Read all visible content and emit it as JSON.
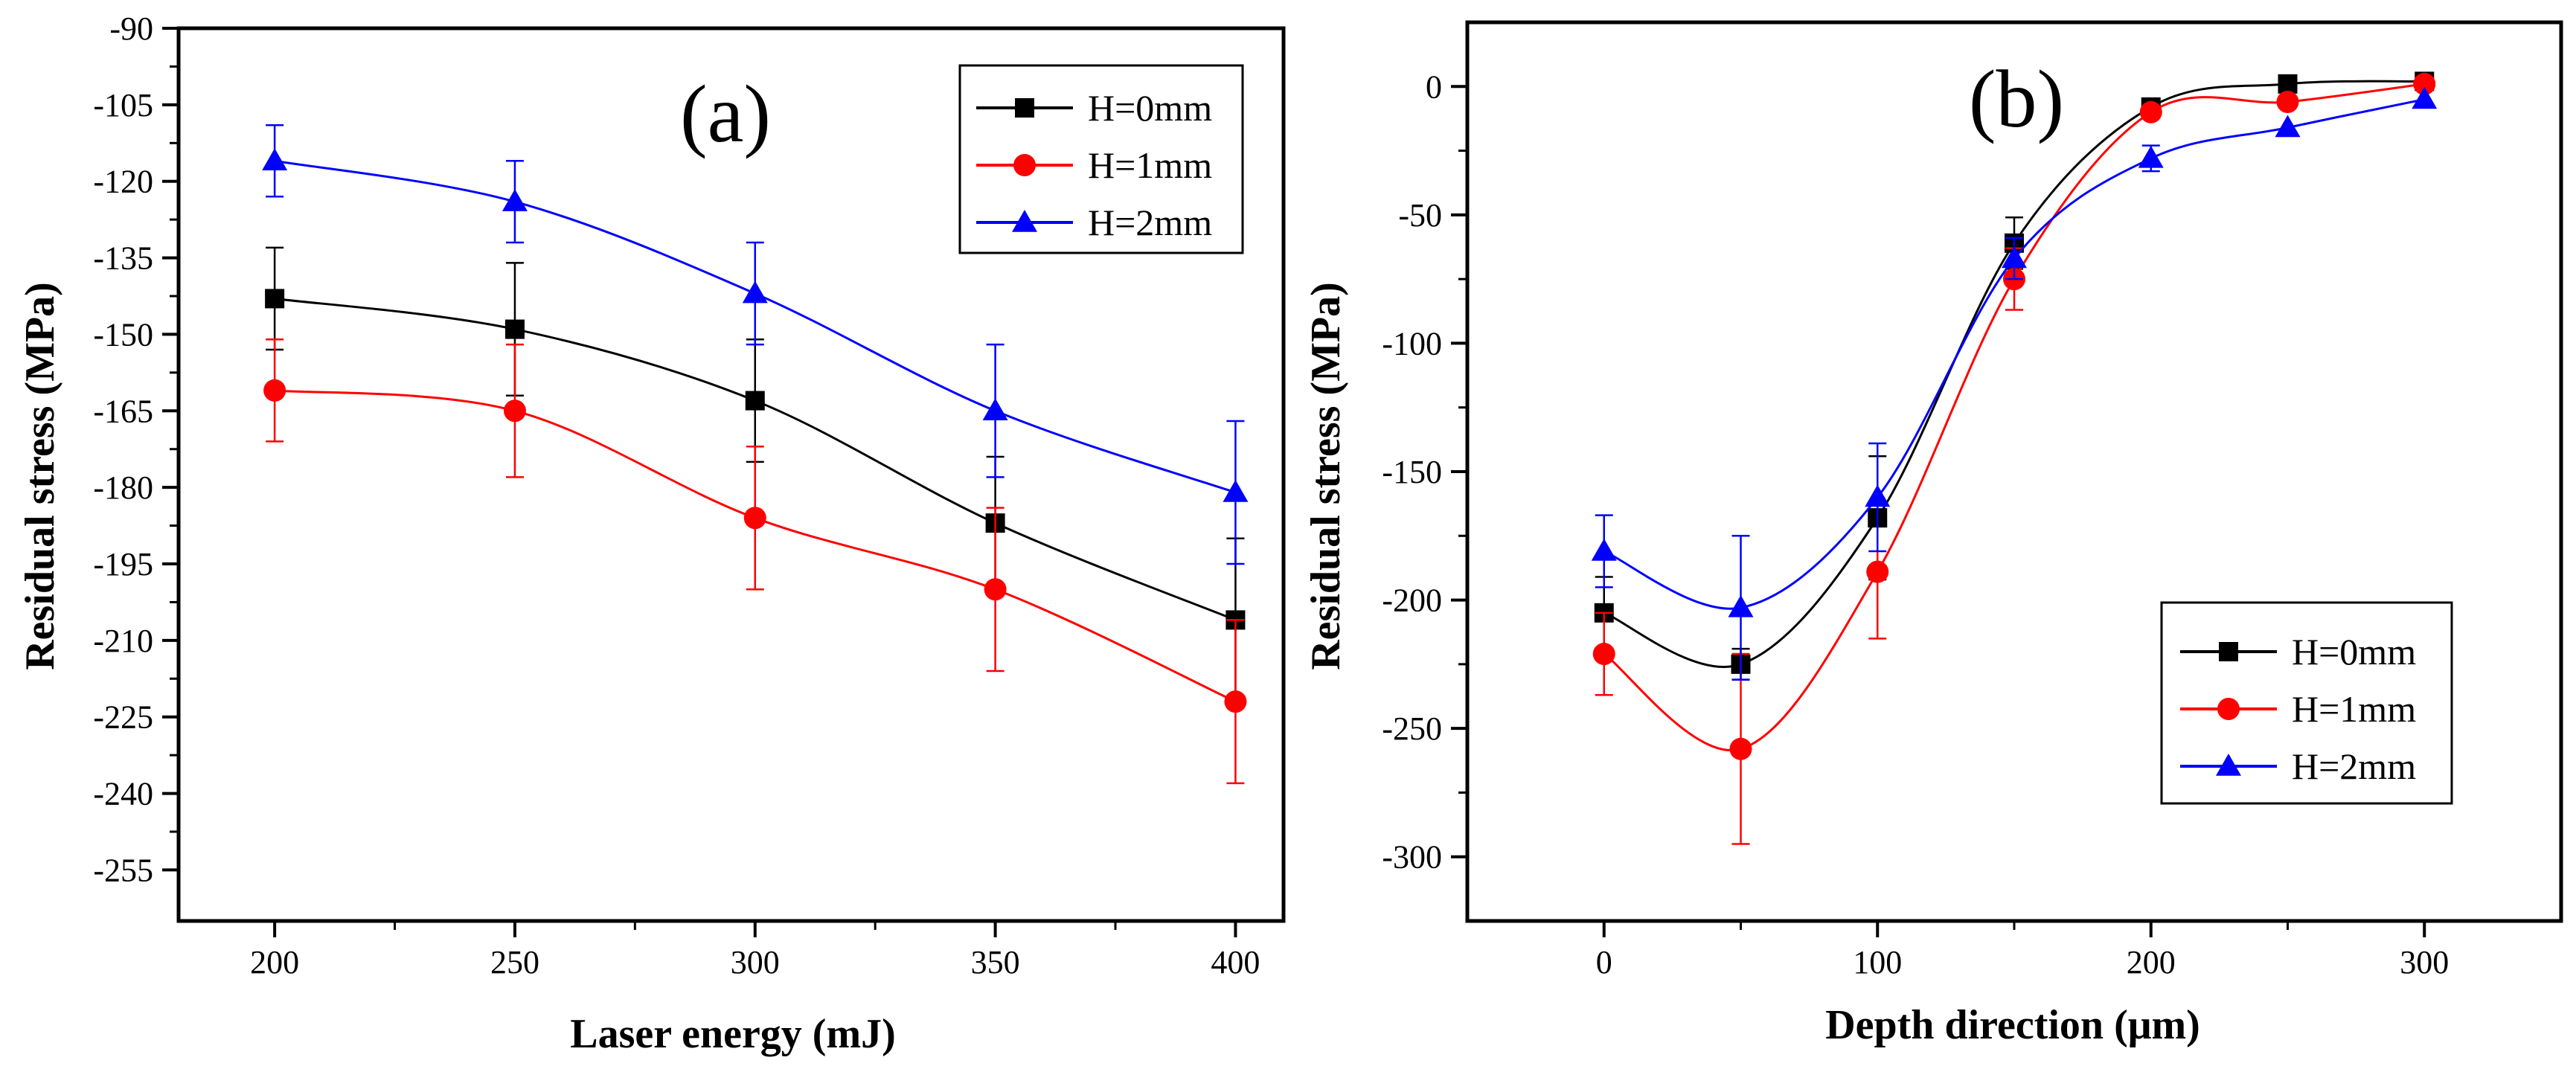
{
  "chart_data": [
    {
      "type": "line",
      "panel_label": "(a)",
      "xlabel": "Laser energy (mJ)",
      "ylabel": "Residual stress (MPa)",
      "xlim": [
        180,
        410
      ],
      "ylim": [
        -265,
        -90
      ],
      "x_ticks": [
        200,
        250,
        300,
        350,
        400
      ],
      "x_tick_labels": [
        "200",
        "250",
        "300",
        "350",
        "400"
      ],
      "y_ticks": [
        -90,
        -105,
        -120,
        -135,
        -150,
        -165,
        -180,
        -195,
        -210,
        -225,
        -240,
        -255
      ],
      "y_tick_labels": [
        "-90",
        "-105",
        "-120",
        "-135",
        "-150",
        "-165",
        "-180",
        "-195",
        "-210",
        "-225",
        "-240",
        "-255"
      ],
      "legend_position": "top-right",
      "x": [
        200,
        250,
        300,
        350,
        400
      ],
      "series": [
        {
          "name": "H=0mm",
          "color": "#000000",
          "marker": "square",
          "values": [
            -143,
            -149,
            -163,
            -187,
            -206
          ],
          "errors": [
            10,
            13,
            12,
            13,
            16
          ]
        },
        {
          "name": "H=1mm",
          "color": "#ff0000",
          "marker": "circle",
          "values": [
            -161,
            -165,
            -186,
            -200,
            -222
          ],
          "errors": [
            10,
            13,
            14,
            16,
            16
          ]
        },
        {
          "name": "H=2mm",
          "color": "#0000ff",
          "marker": "triangle",
          "values": [
            -116,
            -124,
            -142,
            -165,
            -181
          ],
          "errors": [
            7,
            8,
            10,
            13,
            14
          ]
        }
      ]
    },
    {
      "type": "line",
      "panel_label": "(b)",
      "xlabel": "Depth direction (μm)",
      "ylabel": "Residual stress (MPa)",
      "xlim": [
        -50,
        350
      ],
      "ylim": [
        -325,
        25
      ],
      "x_ticks": [
        0,
        100,
        200,
        300
      ],
      "x_tick_labels": [
        "0",
        "100",
        "200",
        "300"
      ],
      "y_ticks": [
        0,
        -50,
        -100,
        -150,
        -200,
        -250,
        -300
      ],
      "y_tick_labels": [
        "0",
        "-50",
        "-100",
        "-150",
        "-200",
        "-250",
        "-300"
      ],
      "legend_position": "bottom-right",
      "x": [
        0,
        50,
        100,
        150,
        200,
        250,
        300
      ],
      "series": [
        {
          "name": "H=0mm",
          "color": "#000000",
          "marker": "square",
          "values": [
            -205,
            -225,
            -168,
            -61,
            -8,
            1,
            2
          ],
          "errors": [
            14,
            6,
            24,
            10,
            0,
            0,
            0
          ]
        },
        {
          "name": "H=1mm",
          "color": "#ff0000",
          "marker": "circle",
          "values": [
            -221,
            -258,
            -189,
            -75,
            -10,
            -6,
            1
          ],
          "errors": [
            16,
            37,
            26,
            12,
            0,
            0,
            0
          ]
        },
        {
          "name": "H=2mm",
          "color": "#0000ff",
          "marker": "triangle",
          "values": [
            -181,
            -203,
            -160,
            -67,
            -28,
            -16,
            -5
          ],
          "errors": [
            14,
            28,
            21,
            8,
            5,
            0,
            0
          ]
        }
      ]
    }
  ]
}
